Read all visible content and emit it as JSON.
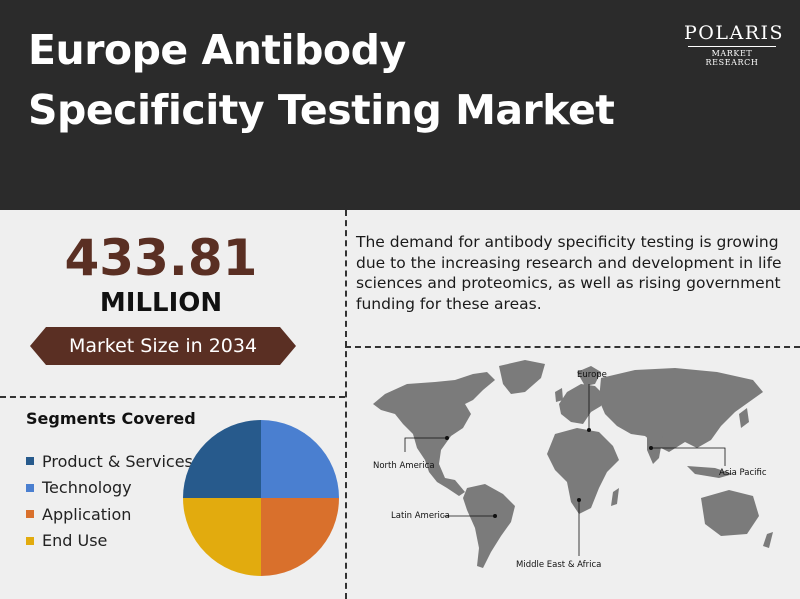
{
  "header": {
    "title_line1": "Europe Antibody",
    "title_line2": "Specificity Testing Market",
    "logo_name": "POLARIS",
    "logo_sub": "MARKET RESEARCH"
  },
  "market": {
    "value": "433.81",
    "unit": "MILLION",
    "banner": "Market Size in 2034"
  },
  "description": "The demand for antibody specificity testing is growing due to the increasing research and development in life sciences and proteomics, as well as rising government funding for these areas.",
  "segments": {
    "title": "Segments Covered",
    "items": [
      {
        "label": "Product & Services",
        "color": "#275a8c"
      },
      {
        "label": "Technology",
        "color": "#4a7fd0"
      },
      {
        "label": "Application",
        "color": "#d9702c"
      },
      {
        "label": "End Use",
        "color": "#e2ab0e"
      }
    ]
  },
  "chart_data": {
    "type": "pie",
    "categories": [
      "Product & Services",
      "Technology",
      "Application",
      "End Use"
    ],
    "values": [
      25,
      25,
      25,
      25
    ],
    "colors": [
      "#275a8c",
      "#4a7fd0",
      "#d9702c",
      "#e2ab0e"
    ]
  },
  "map": {
    "regions": [
      "North America",
      "Europe",
      "Asia Pacific",
      "Latin America",
      "Middle East & Africa"
    ]
  },
  "colors": {
    "header_bg": "#2b2b2b",
    "accent_brown": "#5a2f23",
    "banner_bg": "#5a2f23",
    "map_land": "#7b7b7b"
  }
}
